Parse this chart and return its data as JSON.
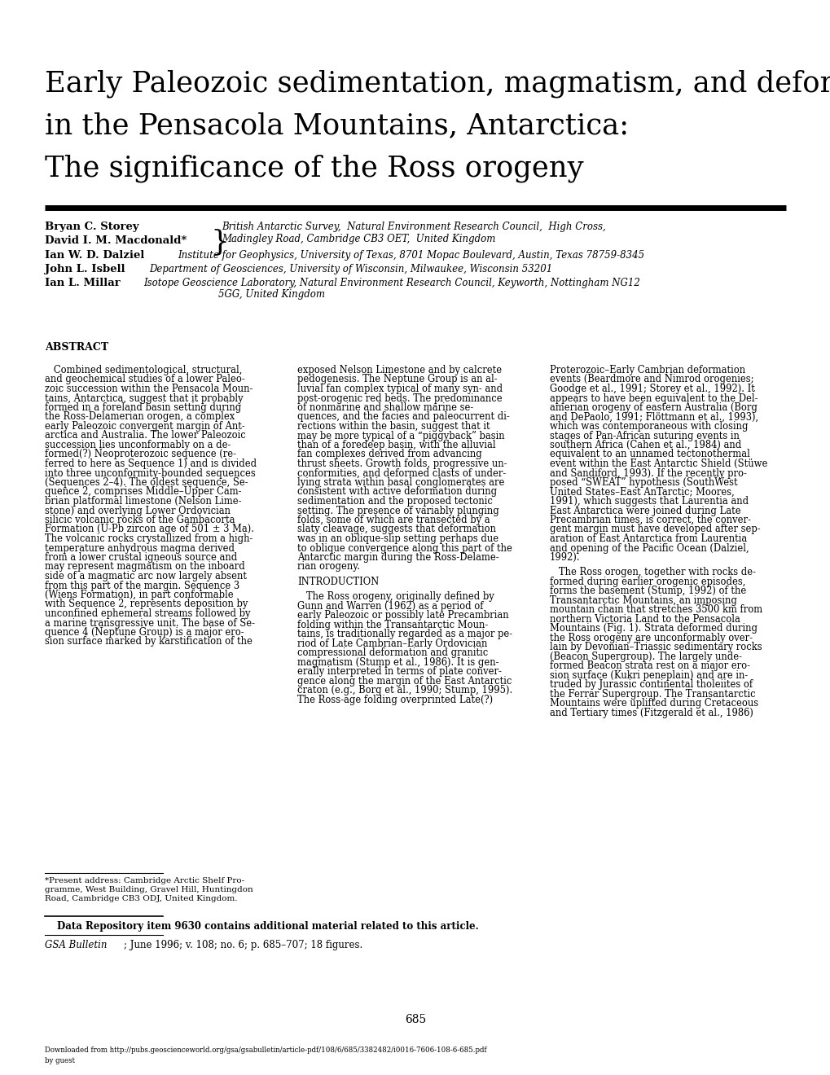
{
  "bg_color": "#ffffff",
  "title_lines": [
    "Early Paleozoic sedimentation, magmatism, and deformation",
    "in the Pensacola Mountains, Antarctica:",
    "The significance of the Ross orogeny"
  ],
  "abstract_col1": "   Combined sedimentological, structural,\nand geochemical studies of a lower Paleo-\nzoic succession within the Pensacola Moun-\ntains, Antarctica, suggest that it probably\nformed in a foreland basin setting during\nthe Ross-Delamerian orogen, a complex\nearly Paleozoic convergent margin of Ant-\narctica and Australia. The lower Paleozoic\nsuccession lies unconformably on a de-\nformed(?) Neoproterozoic sequence (re-\nferred to here as Sequence 1) and is divided\ninto three unconformity-bounded sequences\n(Sequences 2–4). The oldest sequence, Se-\nquence 2, comprises Middle–Upper Cam-\nbrian platformal limestone (Nelson Lime-\nstone) and overlying Lower Ordovician\nsilicic volcanic rocks of the Gambacorta\nFormation (U-Pb zircon age of 501 ± 3 Ma).\nThe volcanic rocks crystallized from a high-\ntemperature anhydrous magma derived\nfrom a lower crustal igneous source and\nmay represent magmatism on the inboard\nside of a magmatic arc now largely absent\nfrom this part of the margin. Sequence 3\n(Wiens Formation), in part conformable\nwith Sequence 2, represents deposition by\nunconfined ephemeral streams followed by\na marine transgressive unit. The base of Se-\nquence 4 (Neptune Group) is a major ero-\nsion surface marked by karstification of the",
  "abstract_col2": "exposed Nelson Limestone and by calcrete\npedogenesis. The Neptune Group is an al-\nluvial fan complex typical of many syn- and\npost-orogenic red beds. The predominance\nof nonmarine and shallow marine se-\nquences, and the facies and paleocurrent di-\nrections within the basin, suggest that it\nmay be more typical of a “piggyback” basin\nthan of a foredeep basin, with the alluvial\nfan complexes derived from advancing\nthrust sheets. Growth folds, progressive un-\nconformities, and deformed clasts of under-\nlying strata within basal conglomerates are\nconsistent with active deformation during\nsedimentation and the proposed tectonic\nsetting. The presence of variably plunging\nfolds, some of which are transected by a\nslaty cleavage, suggests that deformation\nwas in an oblique-slip setting perhaps due\nto oblique convergence along this part of the\nAntarctic margin during the Ross-Delame-\nrian orogeny.\n\nINTRODUCTION\n\n   The Ross orogeny, originally defined by\nGunn and Warren (1962) as a period of\nearly Paleozoic or possibly late Precambrian\nfolding within the Transantarctic Moun-\ntains, is traditionally regarded as a major pe-\nriod of Late Cambrian–Early Ordovician\ncompressional deformation and granitic\nmagmatism (Stump et al., 1986). It is gen-\nerally interpreted in terms of plate conver-\ngence along the margin of the East Antarctic\ncraton (e.g., Borg et al., 1990; Stump, 1995).\nThe Ross-age folding overprinted Late(?)",
  "abstract_col3": "Proterozoic–Early Cambrian deformation\nevents (Beardmore and Nimrod orogenies;\nGoodge et al., 1991; Storey et al., 1992). It\nappears to have been equivalent to the Del-\namerian orogeny of eastern Australia (Borg\nand DePaolo, 1991; Flöttmann et al., 1993),\nwhich was contemporaneous with closing\nstages of Pan-African suturing events in\nsouthern Africa (Cahen et al., 1984) and\nequivalent to an unnamed tectonothermal\nevent within the East Antarctic Shield (Stüwe\nand Sandiford, 1993). If the recently pro-\nposed “SWEAT” hypothesis (SouthWest\nUnited States–East AnTarctic; Moores,\n1991), which suggests that Laurentia and\nEast Antarctica were joined during Late\nPrecambrian times, is correct, the conver-\ngent margin must have developed after sep-\naration of East Antarctica from Laurentia\nand opening of the Pacific Ocean (Dalziel,\n1992).\n\n   The Ross orogen, together with rocks de-\nformed during earlier orogenic episodes,\nforms the basement (Stump, 1992) of the\nTransantarctic Mountains, an imposing\nmountain chain that stretches 3500 km from\nnorthern Victoria Land to the Pensacola\nMountains (Fig. 1). Strata deformed during\nthe Ross orogeny are unconformably over-\nlain by Devonian–Triassic sedimentary rocks\n(Beacon Supergroup). The largely unde-\nformed Beacon strata rest on a major ero-\nsion surface (Kukri peneplain) and are in-\ntruded by Jurassic continental tholeiites of\nthe Ferrar Supergroup. The Transantarctic\nMountains were uplifted during Cretaceous\nand Tertiary times (Fitzgerald et al., 1986)",
  "footnote_line1": "*Present address: Cambridge Arctic Shelf Pro-",
  "footnote_line2": "gramme, West Building, Gravel Hill, Huntingdon",
  "footnote_line3": "Road, Cambridge CB3 ODJ, United Kingdom.",
  "data_repo_text": "Data Repository item 9630 contains additional material related to this article.",
  "journal_italic": "GSA Bulletin",
  "journal_rest": "; June 1996; v. 108; no. 6; p. 685–707; 18 figures.",
  "page_number": "685",
  "download_line1": "Downloaded from http://pubs.geoscienceworld.org/gsa/gsabulletin/article-pdf/108/6/685/3382482/i0016-7606-108-6-685.pdf",
  "download_line2": "by guest"
}
